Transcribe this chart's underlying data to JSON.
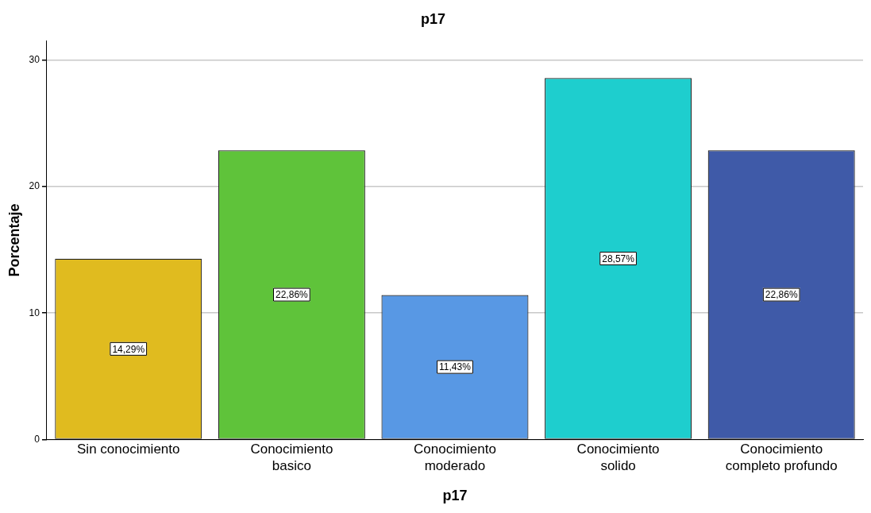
{
  "chart_data": {
    "type": "bar",
    "title": "p17",
    "xlabel": "p17",
    "ylabel": "Porcentaje",
    "categories": [
      "Sin conocimiento",
      "Conocimiento basico",
      "Conocimiento moderado",
      "Conocimiento solido",
      "Conocimiento completo profundo"
    ],
    "values": [
      14.29,
      22.86,
      11.43,
      28.57,
      22.86
    ],
    "value_labels": [
      "14,29%",
      "22,86%",
      "11,43%",
      "28,57%",
      "22,86%"
    ],
    "colors": [
      "#e0bb1f",
      "#5fc33a",
      "#5898e4",
      "#1ecece",
      "#3f5aa8"
    ],
    "ylim": [
      0,
      31.5
    ],
    "yticks": [
      0,
      10,
      20,
      30
    ],
    "grid": "y",
    "legend": false
  }
}
